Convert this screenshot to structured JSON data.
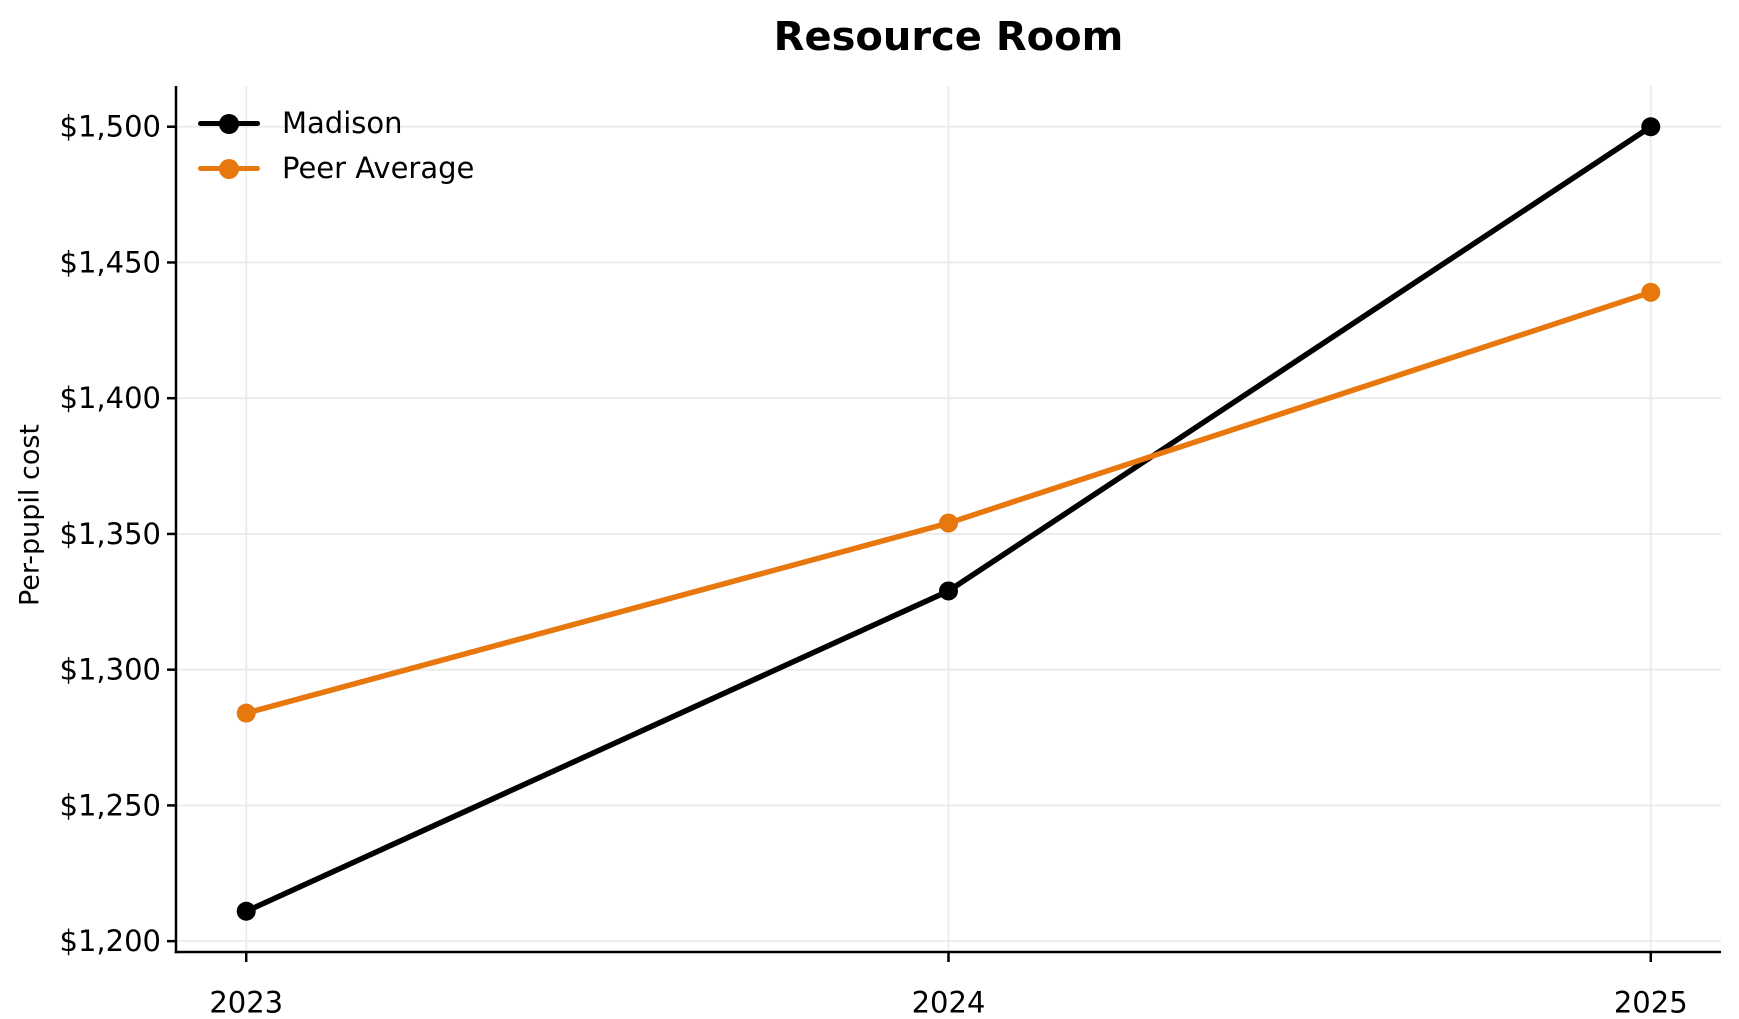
{
  "figure": {
    "background": "#ffffff"
  },
  "chart_data": {
    "type": "line",
    "title": "Resource Room",
    "xlabel": "",
    "ylabel": "Per-pupil cost",
    "x": [
      2023,
      2024,
      2025
    ],
    "x_tick_labels": [
      "2023",
      "2024",
      "2025"
    ],
    "y_ticks": [
      1200,
      1250,
      1300,
      1350,
      1400,
      1450,
      1500
    ],
    "y_tick_labels": [
      "$1,200",
      "$1,250",
      "$1,300",
      "$1,350",
      "$1,400",
      "$1,450",
      "$1,500"
    ],
    "xlim": [
      2022.9,
      2025.1
    ],
    "ylim": [
      1196,
      1515
    ],
    "grid": true,
    "legend_position": "upper-left",
    "series": [
      {
        "name": "Madison",
        "color": "#000000",
        "values": [
          1211,
          1329,
          1500
        ]
      },
      {
        "name": "Peer Average",
        "color": "#e8770d",
        "values": [
          1284,
          1354,
          1439
        ]
      }
    ],
    "style": {
      "grid_color": "#ebebeb",
      "axis_color": "#000000",
      "tick_label_color": "#000000",
      "line_width": 5.5,
      "marker_radius": 9.5
    }
  }
}
